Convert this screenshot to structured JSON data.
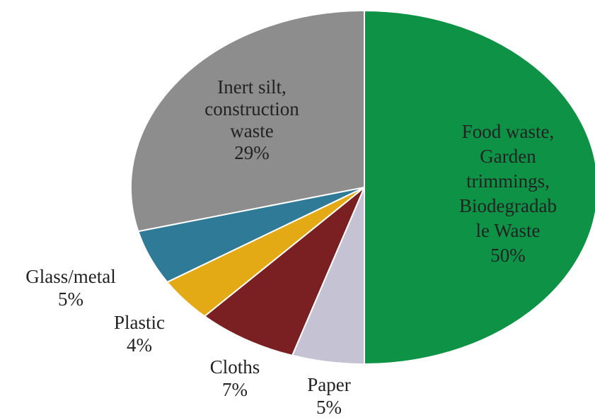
{
  "chart_data": {
    "type": "pie",
    "title": "",
    "slices": [
      {
        "label_lines": [
          "Food waste,",
          "Garden",
          "trimmings,",
          "Biodegradab",
          "le Waste"
        ],
        "percent_label": "50%",
        "value": 50,
        "color": "#0e9346",
        "text_color": "#222222"
      },
      {
        "label_lines": [
          "Paper"
        ],
        "percent_label": "5%",
        "value": 5,
        "color": "#c5c2d3",
        "text_color": "#222222"
      },
      {
        "label_lines": [
          "Cloths"
        ],
        "percent_label": "7%",
        "value": 7,
        "color": "#7a2022",
        "text_color": "#222222"
      },
      {
        "label_lines": [
          "Plastic"
        ],
        "percent_label": "4%",
        "value": 4,
        "color": "#e3aa16",
        "text_color": "#222222"
      },
      {
        "label_lines": [
          "Glass/metal"
        ],
        "percent_label": "5%",
        "value": 5,
        "color": "#2f7a96",
        "text_color": "#222222"
      },
      {
        "label_lines": [
          "Inert silt,",
          "construction",
          "waste"
        ],
        "percent_label": "29%",
        "value": 29,
        "color": "#8d8d8d",
        "text_color": "#222222"
      }
    ]
  }
}
